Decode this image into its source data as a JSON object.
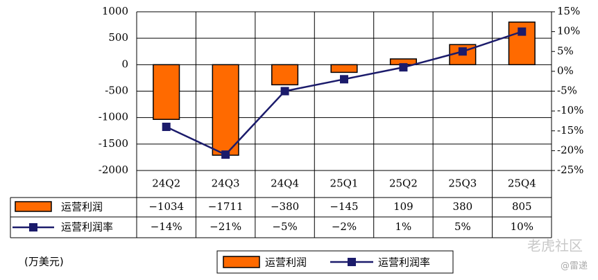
{
  "chart_data": {
    "type": "bar",
    "categories": [
      "24Q2",
      "24Q3",
      "24Q4",
      "25Q1",
      "25Q2",
      "25Q3",
      "25Q4"
    ],
    "series": [
      {
        "name": "运营利润",
        "type": "bar",
        "color": "#ff6a00",
        "values": [
          -1034,
          -1711,
          -380,
          -145,
          109,
          380,
          805
        ],
        "value_labels": [
          "−1034",
          "−1711",
          "−380",
          "−145",
          "109",
          "380",
          "805"
        ]
      },
      {
        "name": "运营利润率",
        "type": "line",
        "axis": "y2",
        "color": "#1b1b6b",
        "values": [
          -14,
          -21,
          -5,
          -2,
          1,
          5,
          10
        ],
        "value_labels": [
          "−14%",
          "−21%",
          "−5%",
          "−2%",
          "1%",
          "5%",
          "10%"
        ]
      }
    ],
    "ylim": [
      -2000,
      1000
    ],
    "yticks": [
      1000,
      500,
      0,
      -500,
      -1000,
      -1500,
      -2000
    ],
    "y2lim": [
      -25,
      15
    ],
    "y2ticks": [
      {
        "value": 15,
        "label": "15%"
      },
      {
        "value": 10,
        "label": "10%"
      },
      {
        "value": 5,
        "label": "5%"
      },
      {
        "value": 0,
        "label": "0%"
      },
      {
        "value": -5,
        "label": "-5%"
      },
      {
        "value": -10,
        "label": "-10%"
      },
      {
        "value": -15,
        "label": "-15%"
      },
      {
        "value": -20,
        "label": "-20%"
      },
      {
        "value": -25,
        "label": "-25%"
      }
    ],
    "grid": true,
    "unit_label": "(万美元)",
    "annotations": [
      "老虎社区",
      "@雷递"
    ]
  }
}
